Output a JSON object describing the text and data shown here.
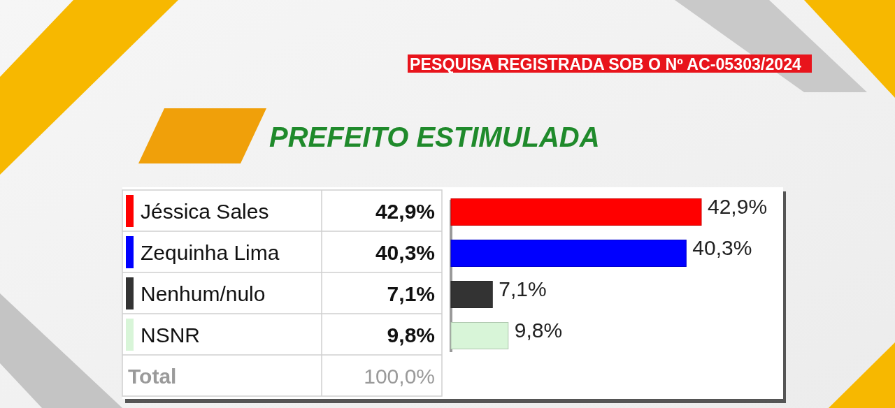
{
  "chart_data": {
    "type": "bar",
    "orientation": "horizontal",
    "title": "PREFEITO ESTIMULADA",
    "categories": [
      "Jéssica Sales",
      "Zequinha Lima",
      "Nenhum/nulo",
      "NSNR"
    ],
    "values": [
      42.9,
      40.3,
      7.1,
      9.8
    ],
    "colors": [
      "#ff0000",
      "#0000ff",
      "#333333",
      "#d8f5d8"
    ],
    "value_labels": [
      "42,9%",
      "40,3%",
      "7,1%",
      "9,8%"
    ],
    "tick_labels": "y",
    "annotations": [
      "PESQUISA REGISTRADA SOB O Nº AC-05303/2024",
      "Total",
      "100,0%"
    ]
  }
}
